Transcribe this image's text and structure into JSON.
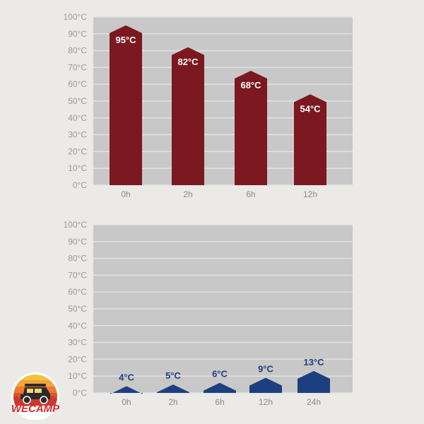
{
  "colors": {
    "hot": "#7b1820",
    "cold": "#1e3f7f",
    "plot_bg": "#c8c8c8",
    "grid": "#e2e2e2"
  },
  "logo": {
    "text": "WECAMP",
    "icon": "off-road-car-icon"
  },
  "chart_data": [
    {
      "type": "bar",
      "categories": [
        "0h",
        "2h",
        "6h",
        "12h"
      ],
      "values": [
        95,
        82,
        68,
        54
      ],
      "data_labels": [
        "95°C",
        "82°C",
        "68°C",
        "54°C"
      ],
      "y_ticks": [
        "0°C",
        "10°C",
        "20°C",
        "30°C",
        "40°C",
        "50°C",
        "60°C",
        "70°C",
        "80°C",
        "90°C",
        "100°C"
      ],
      "ylim": [
        0,
        100
      ],
      "grid": true,
      "label_position": "inside",
      "color": "#7b1820"
    },
    {
      "type": "bar",
      "categories": [
        "0h",
        "2h",
        "6h",
        "12h",
        "24h"
      ],
      "values": [
        4,
        5,
        6,
        9,
        13
      ],
      "data_labels": [
        "4°C",
        "5°C",
        "6°C",
        "9°C",
        "13°C"
      ],
      "y_ticks": [
        "0°C",
        "10°C",
        "20°C",
        "30°C",
        "40°C",
        "50°C",
        "60°C",
        "70°C",
        "80°C",
        "90°C",
        "100°C"
      ],
      "ylim": [
        0,
        100
      ],
      "grid": true,
      "label_position": "above",
      "color": "#1e3f7f"
    }
  ]
}
